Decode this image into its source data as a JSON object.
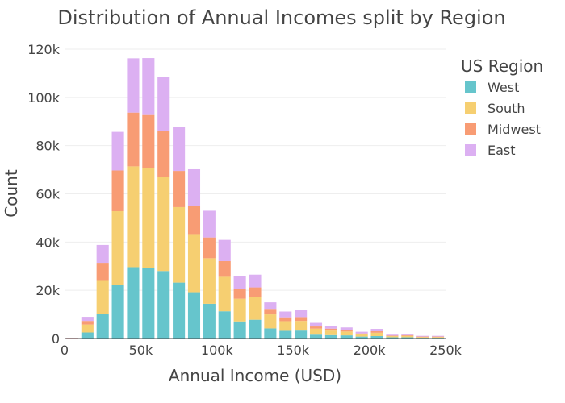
{
  "chart_data": {
    "type": "bar",
    "stacked": true,
    "title": "Distribution of Annual Incomes split by Region",
    "xlabel": "Annual Income (USD)",
    "ylabel": "Count",
    "xlim": [
      0,
      250000
    ],
    "ylim": [
      0,
      122000
    ],
    "x_ticks": [
      {
        "value": 0,
        "label": "0"
      },
      {
        "value": 50000,
        "label": "50k"
      },
      {
        "value": 100000,
        "label": "100k"
      },
      {
        "value": 150000,
        "label": "150k"
      },
      {
        "value": 200000,
        "label": "200k"
      },
      {
        "value": 250000,
        "label": "250k"
      }
    ],
    "y_ticks": [
      {
        "value": 0,
        "label": "0"
      },
      {
        "value": 20000,
        "label": "20k"
      },
      {
        "value": 40000,
        "label": "40k"
      },
      {
        "value": 60000,
        "label": "60k"
      },
      {
        "value": 80000,
        "label": "80k"
      },
      {
        "value": 100000,
        "label": "100k"
      },
      {
        "value": 120000,
        "label": "120k"
      }
    ],
    "grid": true,
    "legend": {
      "title": "US Region",
      "position": "top-right"
    },
    "bin_width": 10000,
    "bin_starts": [
      0,
      10000,
      20000,
      30000,
      40000,
      50000,
      60000,
      70000,
      80000,
      90000,
      100000,
      110000,
      120000,
      130000,
      140000,
      150000,
      160000,
      170000,
      180000,
      190000,
      200000,
      210000,
      220000,
      230000,
      240000
    ],
    "series": [
      {
        "name": "West",
        "color": "#66c5cc",
        "values": [
          100,
          2500,
          10200,
          22200,
          29600,
          29300,
          28000,
          23200,
          19200,
          14400,
          11300,
          7100,
          7800,
          4200,
          3200,
          3300,
          1600,
          1400,
          1300,
          800,
          1000,
          500,
          500,
          300,
          300
        ]
      },
      {
        "name": "South",
        "color": "#f6cf71",
        "values": [
          100,
          3300,
          13700,
          30600,
          41800,
          41500,
          38900,
          31300,
          24100,
          18900,
          14300,
          9400,
          9400,
          5800,
          4000,
          4000,
          2500,
          1900,
          1600,
          900,
          1400,
          500,
          600,
          300,
          300
        ]
      },
      {
        "name": "Midwest",
        "color": "#f89c74",
        "values": [
          50,
          1500,
          7500,
          16900,
          22300,
          21900,
          19200,
          15000,
          11600,
          8600,
          6500,
          4100,
          4000,
          2300,
          1600,
          1600,
          900,
          800,
          700,
          400,
          600,
          200,
          300,
          200,
          200
        ]
      },
      {
        "name": "East",
        "color": "#dcb0f2",
        "values": [
          50,
          1700,
          7400,
          16000,
          22500,
          23600,
          22300,
          18400,
          15300,
          11100,
          8800,
          5400,
          5300,
          2700,
          2400,
          3000,
          1500,
          1100,
          1000,
          700,
          1000,
          400,
          500,
          300,
          300
        ]
      }
    ]
  }
}
